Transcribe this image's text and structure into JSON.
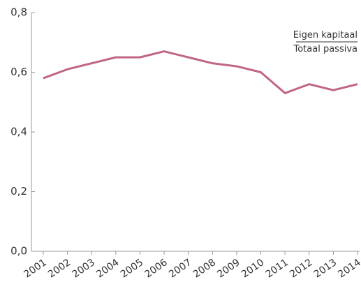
{
  "chart_data": {
    "type": "line",
    "categories": [
      "2001",
      "2002",
      "2003",
      "2004",
      "2005",
      "2006",
      "2007",
      "2008",
      "2009",
      "2010",
      "2011",
      "2012",
      "2013",
      "2014"
    ],
    "series": [
      {
        "name": "Eigen kapitaal",
        "color": "#c06680",
        "values": [
          0.58,
          0.61,
          0.63,
          0.65,
          0.65,
          0.67,
          0.65,
          0.63,
          0.62,
          0.6,
          0.53,
          0.56,
          0.54,
          0.56
        ]
      }
    ],
    "legend_denominator": "Totaal passiva",
    "ylim": [
      0,
      0.8
    ],
    "yticks": [
      {
        "value": 0,
        "label": "0,0"
      },
      {
        "value": 0.2,
        "label": "0,2"
      },
      {
        "value": 0.4,
        "label": "0,4"
      },
      {
        "value": 0.6,
        "label": "0,6"
      },
      {
        "value": 0.8,
        "label": "0,8"
      }
    ],
    "grid": false
  }
}
